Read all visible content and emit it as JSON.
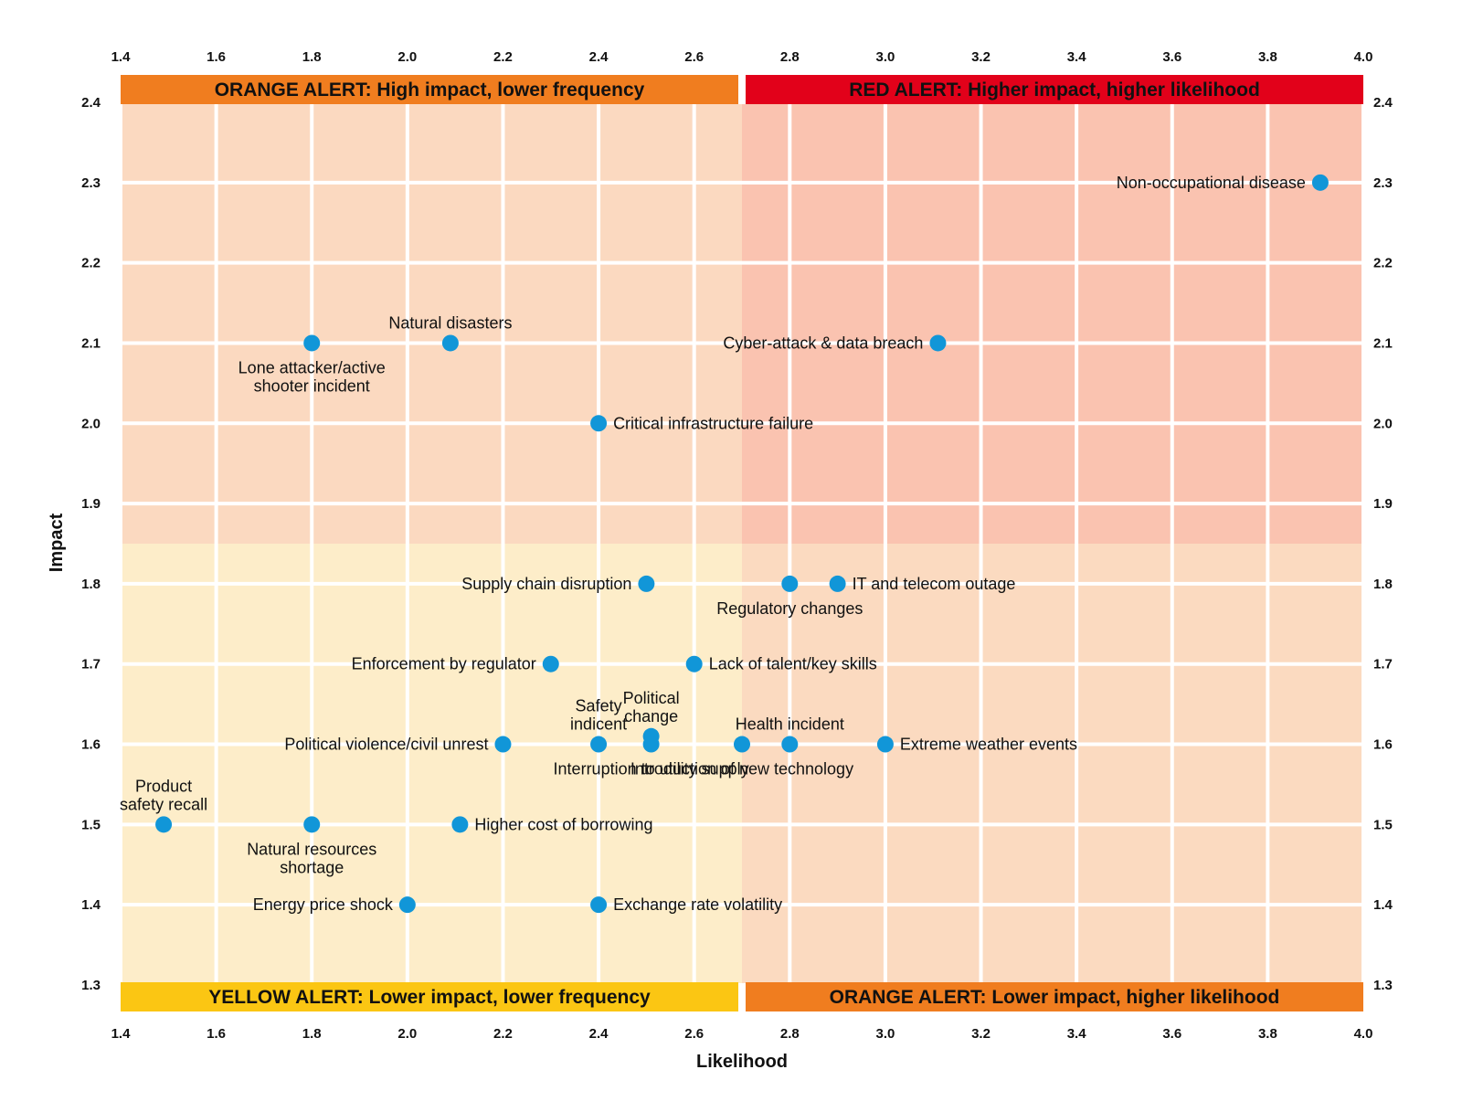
{
  "chart_data": {
    "type": "scatter",
    "xlabel": "Likelihood",
    "ylabel": "Impact",
    "xlim": [
      1.4,
      4.0
    ],
    "ylim": [
      1.3,
      2.4
    ],
    "x_ticks": [
      "1.4",
      "1.6",
      "1.8",
      "2.0",
      "2.2",
      "2.4",
      "2.6",
      "2.8",
      "3.0",
      "3.2",
      "3.4",
      "3.6",
      "3.8",
      "4.0"
    ],
    "y_ticks": [
      "1.3",
      "1.4",
      "1.5",
      "1.6",
      "1.7",
      "1.8",
      "1.9",
      "2.0",
      "2.1",
      "2.2",
      "2.3",
      "2.4"
    ],
    "grid": true,
    "x_split": 2.7,
    "y_split": 1.85,
    "quadrants": {
      "top_left": "#fbd9c0",
      "top_right": "#fac3b0",
      "bottom_left": "#fdedc9",
      "bottom_right": "#fbdac0"
    },
    "marker_color": "#1196d8",
    "banners": [
      {
        "position": "top-left",
        "text": "ORANGE ALERT: High impact, lower frequency",
        "color": "#f07d1f"
      },
      {
        "position": "top-right",
        "text": "RED ALERT: Higher impact, higher likelihood",
        "color": "#e2011a"
      },
      {
        "position": "bottom-left",
        "text": "YELLOW ALERT: Lower impact, lower frequency",
        "color": "#fbc613"
      },
      {
        "position": "bottom-right",
        "text": "ORANGE ALERT: Lower impact, higher likelihood",
        "color": "#f07d1f"
      }
    ],
    "points": [
      {
        "label": [
          "Non-occupational disease"
        ],
        "x": 3.91,
        "y": 2.3,
        "anchor": "left"
      },
      {
        "label": [
          "Natural disasters"
        ],
        "x": 2.09,
        "y": 2.1,
        "anchor": "above"
      },
      {
        "label": [
          "Lone attacker/active",
          "shooter incident"
        ],
        "x": 1.8,
        "y": 2.1,
        "anchor": "below"
      },
      {
        "label": [
          "Cyber-attack & data breach"
        ],
        "x": 3.11,
        "y": 2.1,
        "anchor": "left"
      },
      {
        "label": [
          "Critical infrastructure failure"
        ],
        "x": 2.4,
        "y": 2.0,
        "anchor": "right"
      },
      {
        "label": [
          "Supply chain disruption"
        ],
        "x": 2.5,
        "y": 1.8,
        "anchor": "left"
      },
      {
        "label": [
          "Regulatory changes"
        ],
        "x": 2.8,
        "y": 1.8,
        "anchor": "below"
      },
      {
        "label": [
          "IT and telecom outage"
        ],
        "x": 2.9,
        "y": 1.8,
        "anchor": "right"
      },
      {
        "label": [
          "Enforcement by regulator"
        ],
        "x": 2.3,
        "y": 1.7,
        "anchor": "left"
      },
      {
        "label": [
          "Lack of talent/key skills"
        ],
        "x": 2.6,
        "y": 1.7,
        "anchor": "right"
      },
      {
        "label": [
          "Political violence/civil unrest"
        ],
        "x": 2.2,
        "y": 1.6,
        "anchor": "left"
      },
      {
        "label": [
          "Safety",
          "indicent"
        ],
        "x": 2.4,
        "y": 1.6,
        "anchor": "above"
      },
      {
        "label": [
          "Political",
          "change"
        ],
        "x": 2.51,
        "y": 1.61,
        "anchor": "above"
      },
      {
        "label": [
          "Interruption to utility supply"
        ],
        "x": 2.51,
        "y": 1.6,
        "anchor": "below"
      },
      {
        "label": [
          "Introduction of new technology"
        ],
        "x": 2.7,
        "y": 1.6,
        "anchor": "below"
      },
      {
        "label": [
          "Health incident"
        ],
        "x": 2.8,
        "y": 1.6,
        "anchor": "above"
      },
      {
        "label": [
          "Extreme weather events"
        ],
        "x": 3.0,
        "y": 1.6,
        "anchor": "right"
      },
      {
        "label": [
          "Product",
          "safety recall"
        ],
        "x": 1.49,
        "y": 1.5,
        "anchor": "above"
      },
      {
        "label": [
          "Natural resources",
          "shortage"
        ],
        "x": 1.8,
        "y": 1.5,
        "anchor": "below"
      },
      {
        "label": [
          "Higher cost of borrowing"
        ],
        "x": 2.11,
        "y": 1.5,
        "anchor": "right"
      },
      {
        "label": [
          "Energy price shock"
        ],
        "x": 2.0,
        "y": 1.4,
        "anchor": "left"
      },
      {
        "label": [
          "Exchange rate volatility"
        ],
        "x": 2.4,
        "y": 1.4,
        "anchor": "right"
      }
    ]
  }
}
